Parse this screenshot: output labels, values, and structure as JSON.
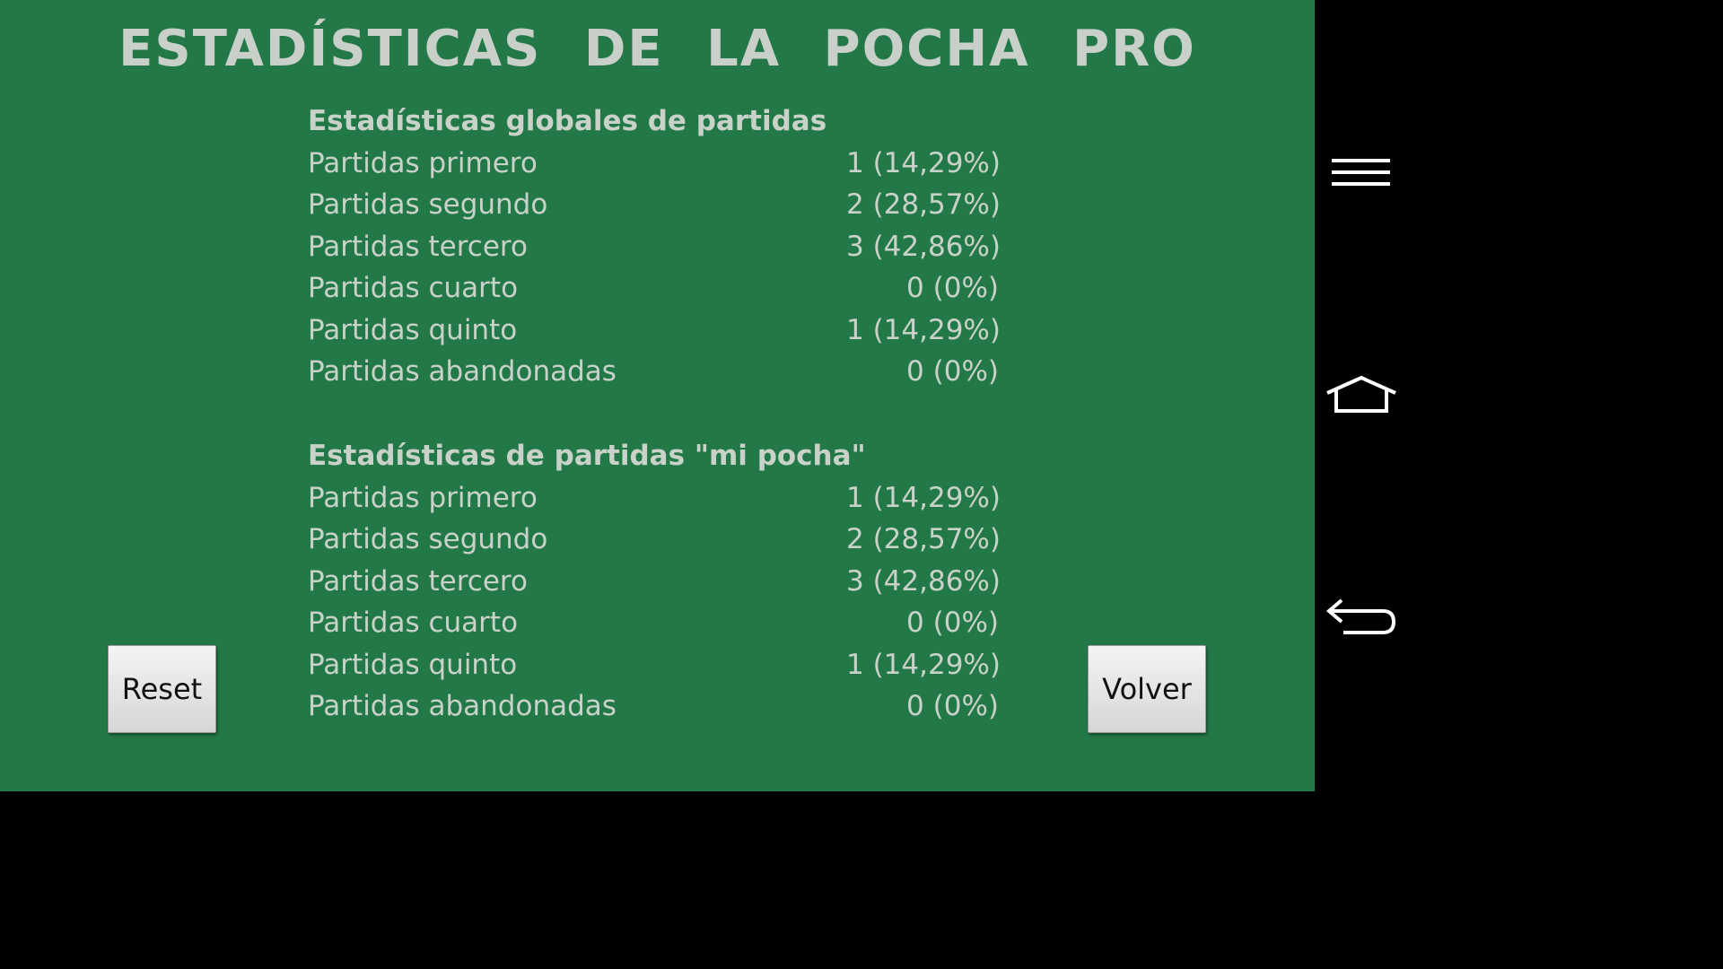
{
  "title": "ESTADÍSTICAS DE LA POCHA PRO",
  "sections": [
    {
      "heading": "Estadísticas globales de partidas",
      "rows": [
        {
          "label": "Partidas primero",
          "value": "1  (14,29%)"
        },
        {
          "label": "Partidas segundo",
          "value": "2  (28,57%)"
        },
        {
          "label": "Partidas tercero",
          "value": "3  (42,86%)"
        },
        {
          "label": "Partidas cuarto",
          "value": "0  (0%)"
        },
        {
          "label": "Partidas quinto",
          "value": "1  (14,29%)"
        },
        {
          "label": "Partidas abandonadas",
          "value": "0  (0%)"
        }
      ]
    },
    {
      "heading": "Estadísticas de partidas \"mi pocha\"",
      "rows": [
        {
          "label": "Partidas primero",
          "value": "1  (14,29%)"
        },
        {
          "label": "Partidas segundo",
          "value": "2  (28,57%)"
        },
        {
          "label": "Partidas tercero",
          "value": "3  (42,86%)"
        },
        {
          "label": "Partidas cuarto",
          "value": "0  (0%)"
        },
        {
          "label": "Partidas quinto",
          "value": "1  (14,29%)"
        },
        {
          "label": "Partidas abandonadas",
          "value": "0  (0%)"
        }
      ]
    }
  ],
  "buttons": {
    "reset": "Reset",
    "volver": "Volver"
  },
  "navbar": {
    "icons": [
      "menu-icon",
      "home-icon",
      "back-icon"
    ]
  },
  "colors": {
    "background": "#237847",
    "text": "#c9d2c9",
    "navbar": "#000000"
  }
}
